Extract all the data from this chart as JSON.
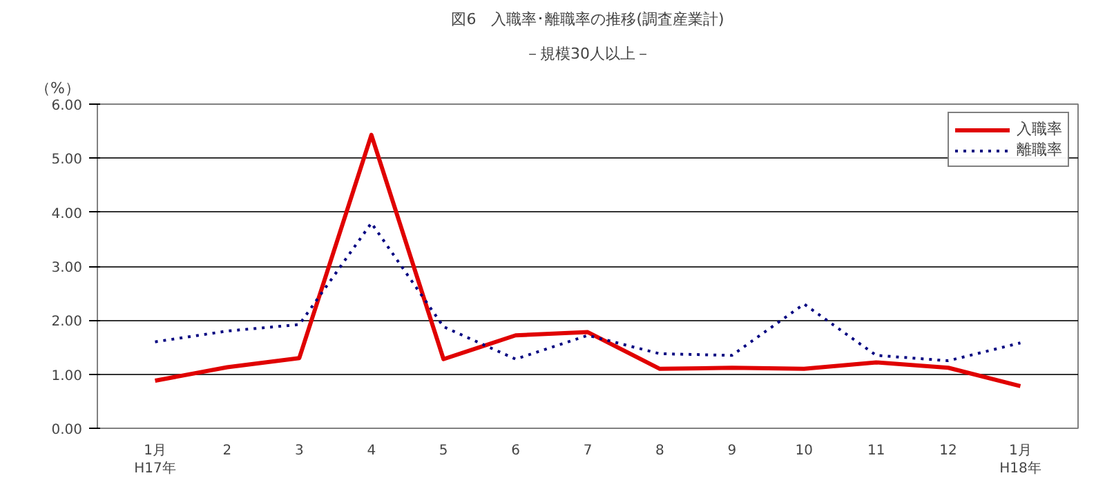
{
  "chart_data": {
    "type": "line",
    "title": "図6　入職率･離職率の推移(調査産業計)",
    "subtitle": "－規模30人以上－",
    "ylabel": "（%）",
    "categories": [
      "1月\nH17年",
      "2",
      "3",
      "4",
      "5",
      "6",
      "7",
      "8",
      "9",
      "10",
      "11",
      "12",
      "1月\nH18年"
    ],
    "series": [
      {
        "name": "入職率",
        "color": "#e00000",
        "line_style": "solid",
        "values": [
          0.88,
          1.13,
          1.3,
          5.43,
          1.28,
          1.72,
          1.78,
          1.1,
          1.12,
          1.1,
          1.22,
          1.12,
          0.78
        ]
      },
      {
        "name": "離職率",
        "color": "#000080",
        "line_style": "dotted",
        "values": [
          1.6,
          1.8,
          1.92,
          3.8,
          1.88,
          1.28,
          1.72,
          1.38,
          1.35,
          2.3,
          1.35,
          1.25,
          1.58
        ]
      }
    ],
    "ylim": [
      0,
      6
    ],
    "yticks": [
      {
        "value": 0,
        "label": "0.00"
      },
      {
        "value": 1,
        "label": "1.00"
      },
      {
        "value": 2,
        "label": "2.00"
      },
      {
        "value": 3,
        "label": "3.00"
      },
      {
        "value": 4,
        "label": "4.00"
      },
      {
        "value": 5,
        "label": "5.00"
      },
      {
        "value": 6,
        "label": "6.00"
      }
    ],
    "grid": "y",
    "legend": "top right",
    "marker": "none"
  }
}
